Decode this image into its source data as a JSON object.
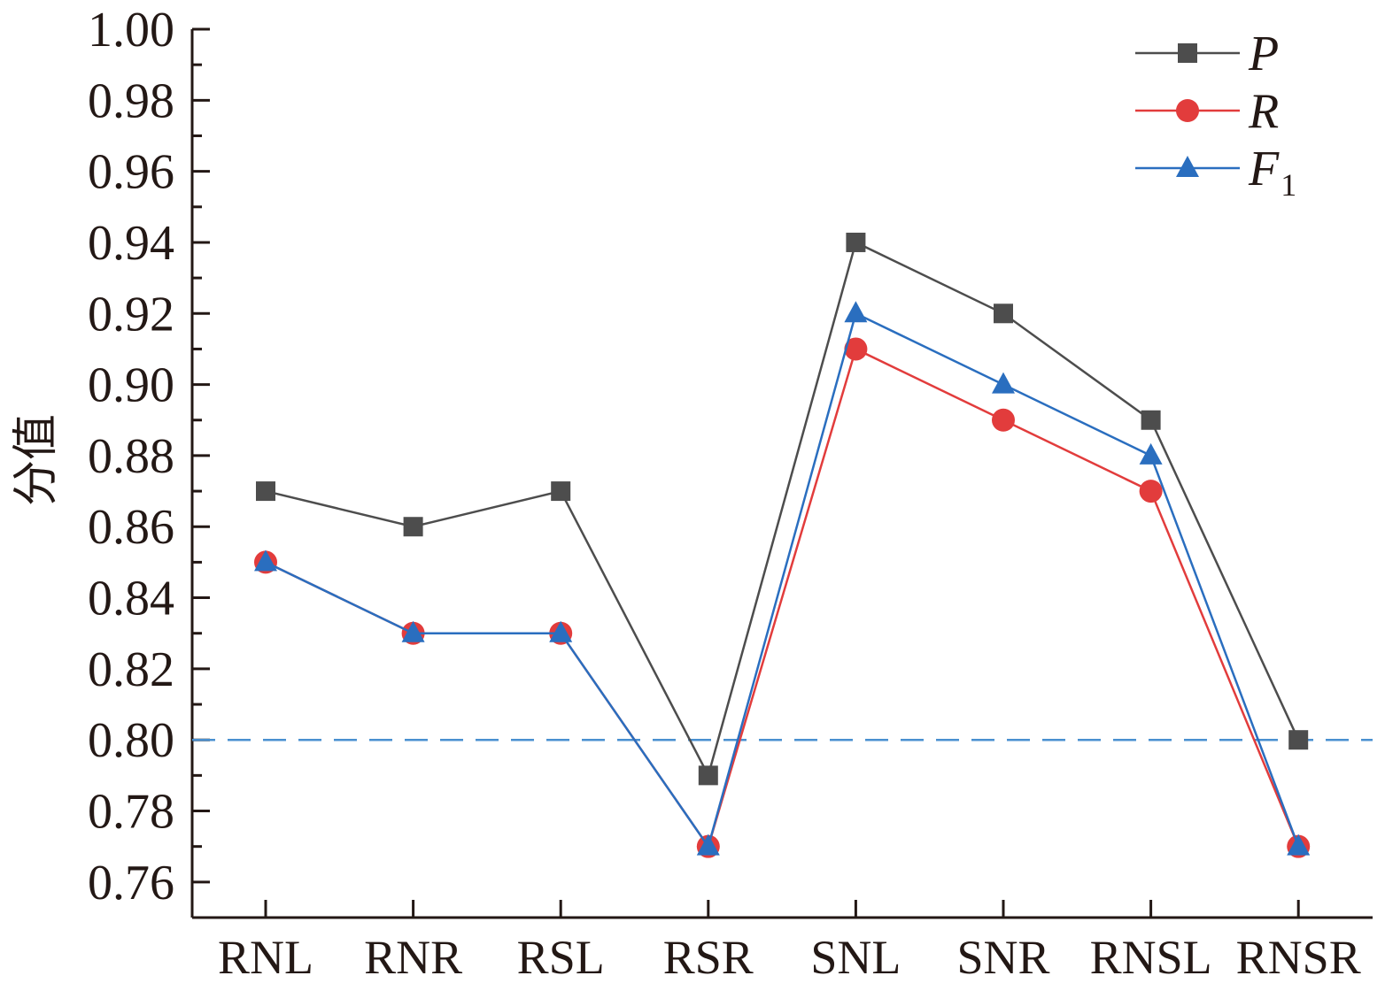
{
  "chart_data": {
    "type": "line",
    "title": "",
    "xlabel": "",
    "ylabel": "分值",
    "categories": [
      "RNL",
      "RNR",
      "RSL",
      "RSR",
      "SNL",
      "SNR",
      "RNSL",
      "RNSR"
    ],
    "ylim": [
      0.75,
      1.0
    ],
    "yticks": [
      "0.76",
      "0.78",
      "0.80",
      "0.82",
      "0.84",
      "0.86",
      "0.88",
      "0.90",
      "0.92",
      "0.94",
      "0.96",
      "0.98",
      "1.00"
    ],
    "reference_line": {
      "y": 0.8,
      "style": "dashed",
      "color": "#4a90d0"
    },
    "legend_position": "top-right",
    "grid": false,
    "series": [
      {
        "name": "P",
        "subscript": "",
        "color": "#4d4d4d",
        "marker": "square",
        "values": [
          0.87,
          0.86,
          0.87,
          0.79,
          0.94,
          0.92,
          0.89,
          0.8
        ]
      },
      {
        "name": "R",
        "subscript": "",
        "color": "#e23c3c",
        "marker": "circle",
        "values": [
          0.85,
          0.83,
          0.83,
          0.77,
          0.91,
          0.89,
          0.87,
          0.77
        ]
      },
      {
        "name": "F",
        "subscript": "1",
        "color": "#2a6ebf",
        "marker": "triangle",
        "values": [
          0.85,
          0.83,
          0.83,
          0.77,
          0.92,
          0.9,
          0.88,
          0.77
        ]
      }
    ]
  }
}
